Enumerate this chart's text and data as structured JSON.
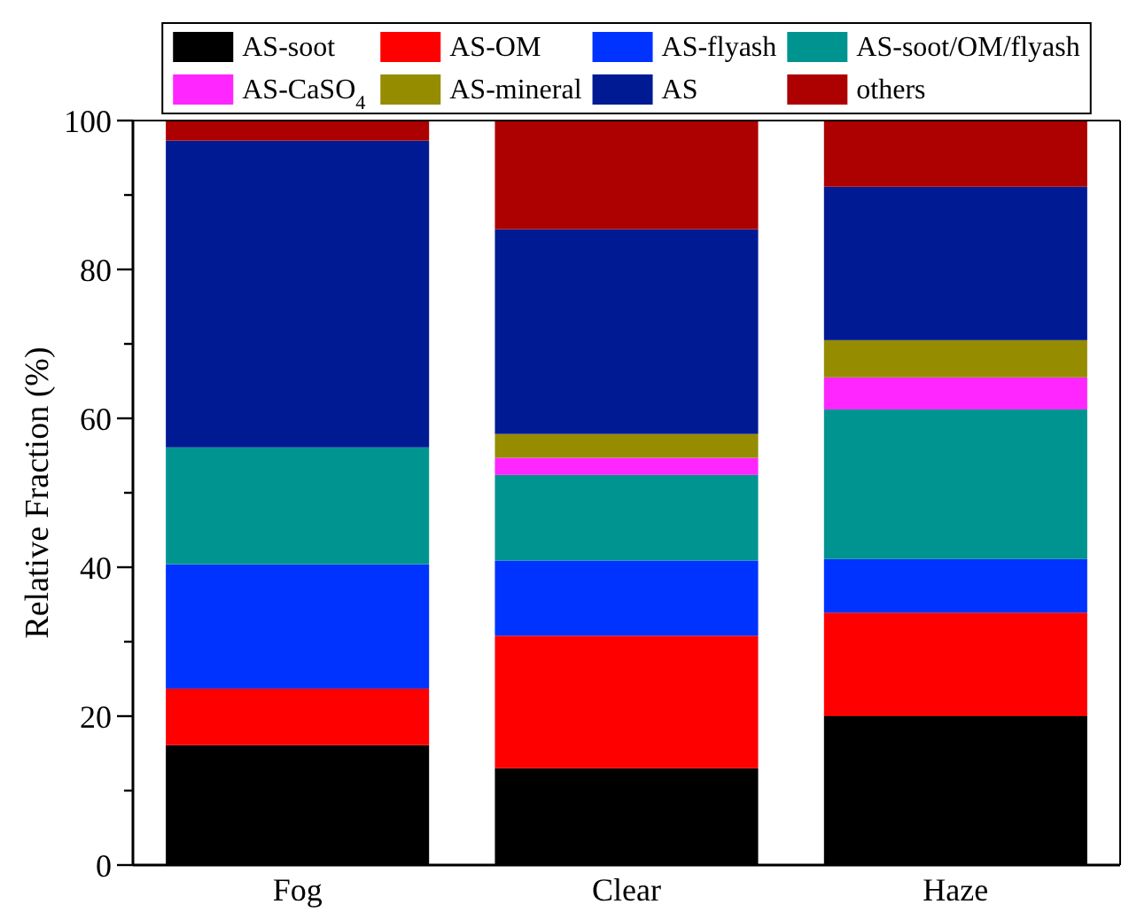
{
  "chart_data": {
    "type": "bar",
    "stacked": true,
    "ylabel": "Relative Fraction (%)",
    "categories": [
      "Fog",
      "Clear",
      "Haze"
    ],
    "ylim": [
      0,
      100
    ],
    "yticks": [
      0,
      {
        "value": 10,
        "label": null
      },
      20,
      {
        "value": 30,
        "label": null
      },
      40,
      {
        "value": 50,
        "label": null
      },
      60,
      {
        "value": 70,
        "label": null
      },
      80,
      {
        "value": 90,
        "label": null
      },
      100
    ],
    "legend": "top",
    "series": [
      {
        "name": "AS-soot",
        "color": "#000000",
        "values": [
          16.1,
          13.0,
          20.0
        ]
      },
      {
        "name": "AS-OM",
        "color": "#ff0000",
        "values": [
          7.6,
          17.8,
          13.9
        ]
      },
      {
        "name": "AS-flyash",
        "color": "#0033ff",
        "values": [
          16.7,
          10.1,
          7.2
        ]
      },
      {
        "name": "AS-soot/OM/flyash",
        "color": "#009490",
        "values": [
          15.7,
          11.5,
          20.1
        ]
      },
      {
        "name": "AS-CaSO$_{4}$",
        "color": "#ff26ff",
        "values": [
          0,
          2.3,
          4.3
        ]
      },
      {
        "name": "AS-mineral",
        "color": "#968c00",
        "values": [
          0,
          3.2,
          5.0
        ]
      },
      {
        "name": "AS",
        "color": "#001a94",
        "values": [
          41.2,
          27.5,
          20.6
        ]
      },
      {
        "name": "others",
        "color": "#ad0000",
        "values": [
          2.7,
          14.6,
          8.9
        ]
      }
    ]
  }
}
